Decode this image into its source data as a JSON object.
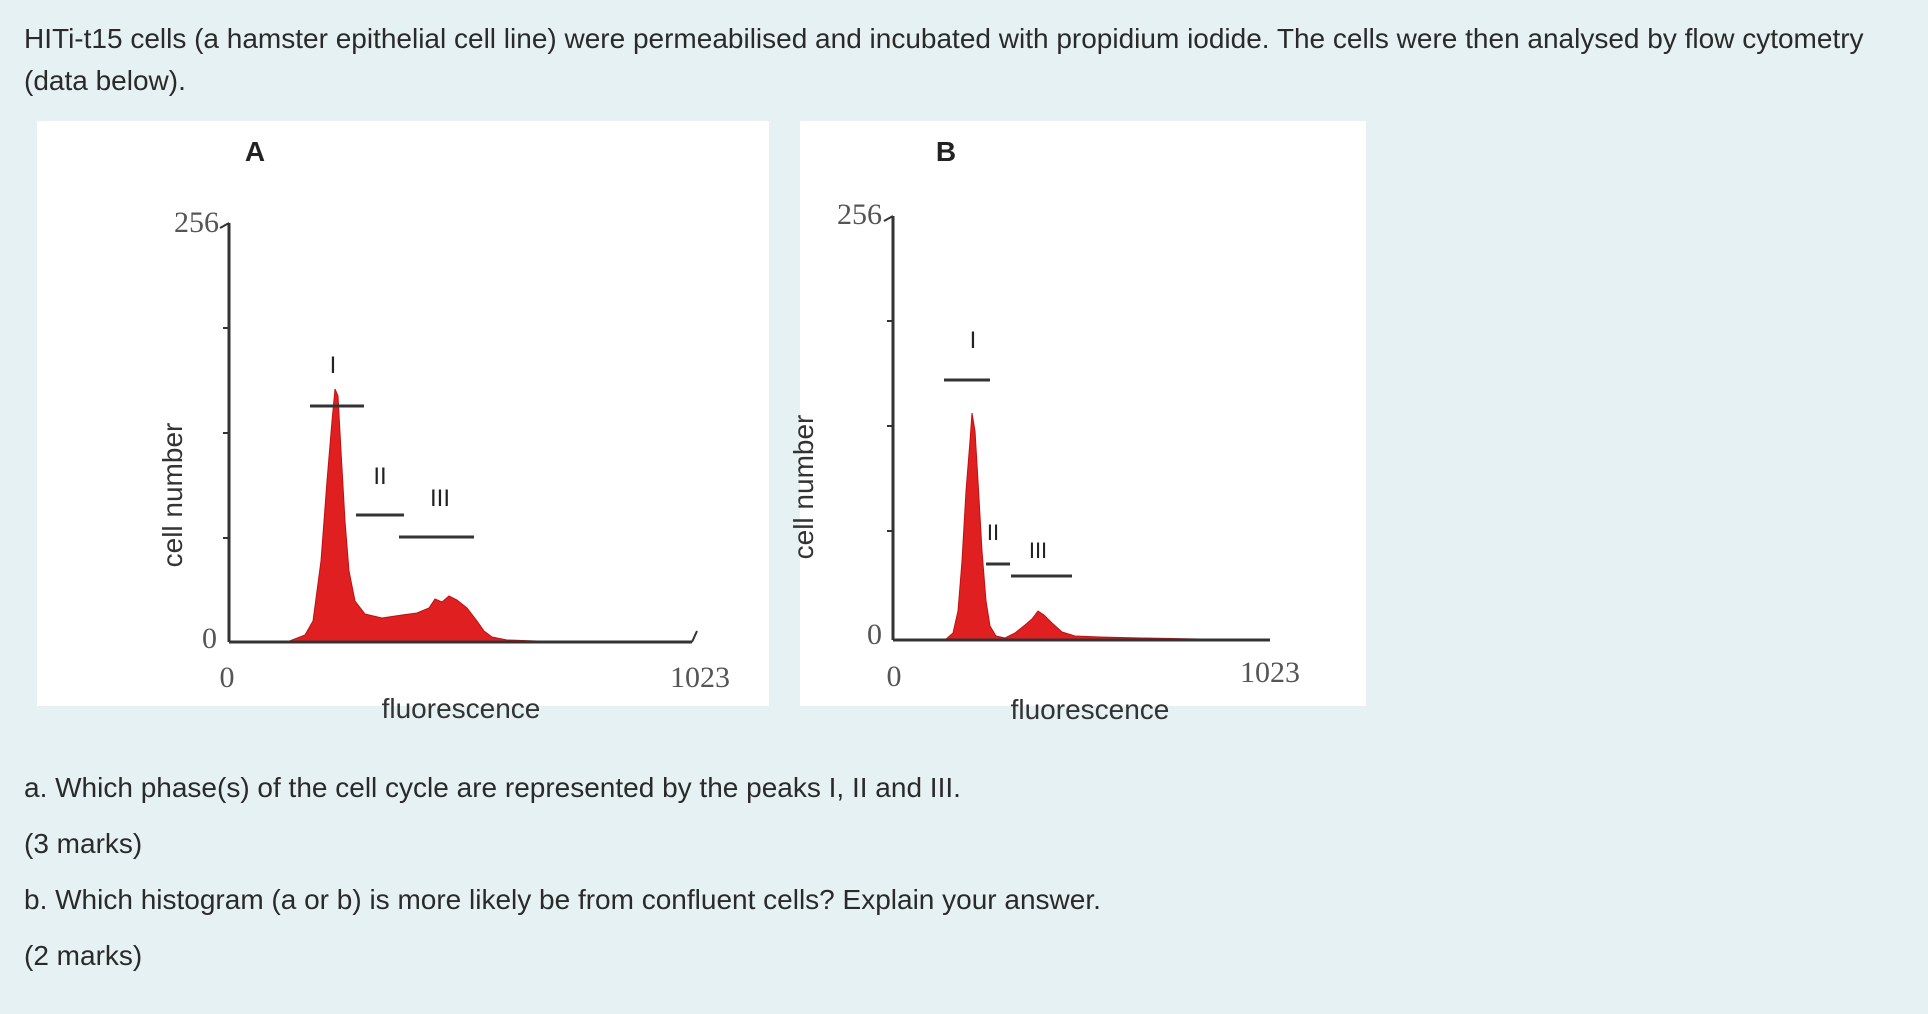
{
  "intro_text": "HITi-t15 cells (a hamster epithelial cell line) were permeabilised and incubated with propidium iodide.  The cells were then analysed by flow cytometry (data below).",
  "figure": {
    "panel_a": {
      "label": "A",
      "y_axis_label": "cell number",
      "y_max_label": "256",
      "y_min_label": "0",
      "x_min_label": "0",
      "x_max_label": "1023",
      "x_axis_label": "fluorescence",
      "peak_labels": [
        "I",
        "II",
        "III"
      ]
    },
    "panel_b": {
      "label": "B",
      "y_axis_label": "cell number",
      "y_max_label": "256",
      "y_min_label": "0",
      "x_min_label": "0",
      "x_max_label": "1023",
      "x_axis_label": "fluorescence",
      "peak_labels": [
        "I",
        "II",
        "III"
      ]
    },
    "fill_color": "#e02020",
    "axis_color": "#333333"
  },
  "questions": {
    "a_text": "a. Which phase(s) of the cell cycle are represented by the peaks I, II and III.",
    "a_marks": "(3 marks)",
    "b_text": "b. Which histogram (a or b) is more likely be from confluent cells? Explain your answer.",
    "b_marks": "(2 marks)"
  }
}
